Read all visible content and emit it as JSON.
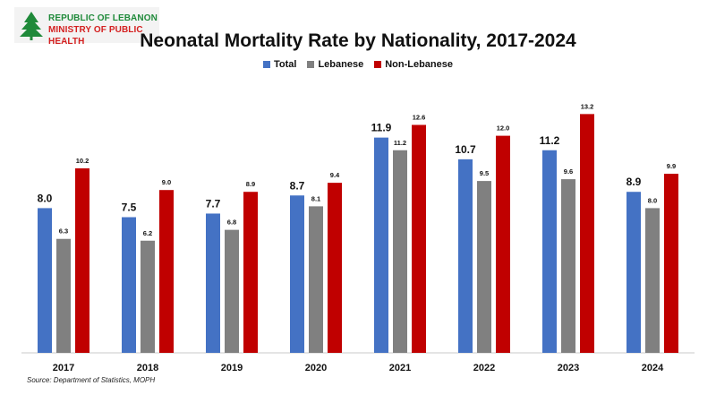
{
  "logo": {
    "line1": "REPUBLIC OF LEBANON",
    "line2": "MINISTRY OF PUBLIC HEALTH",
    "icon": "cedar-icon"
  },
  "chart_data": {
    "type": "bar",
    "title": "Neonatal Mortality Rate by Nationality, 2017-2024",
    "categories": [
      "2017",
      "2018",
      "2019",
      "2020",
      "2021",
      "2022",
      "2023",
      "2024"
    ],
    "series": [
      {
        "name": "Total",
        "color": "#4472c4",
        "values": [
          8.0,
          7.5,
          7.7,
          8.7,
          11.9,
          10.7,
          11.2,
          8.9
        ]
      },
      {
        "name": "Lebanese",
        "color": "#808080",
        "values": [
          6.3,
          6.2,
          6.8,
          8.1,
          11.2,
          9.5,
          9.6,
          8.0
        ]
      },
      {
        "name": "Non-Lebanese",
        "color": "#c00000",
        "values": [
          10.2,
          9.0,
          8.9,
          9.4,
          12.6,
          12.0,
          13.2,
          9.9
        ]
      }
    ],
    "ylim": [
      0,
      16
    ],
    "grid": false,
    "legend_position": "top-center",
    "data_labels": true,
    "source": "Source: Department of Statistics, MOPH"
  }
}
